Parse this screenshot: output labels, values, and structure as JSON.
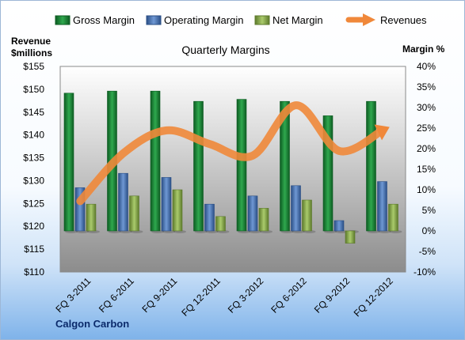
{
  "chart_data": {
    "type": "bar",
    "title": "Quarterly Margins",
    "left_axis_title_line1": "Revenue",
    "left_axis_title_line2": "$millions",
    "right_axis_title": "Margin %",
    "company": "Calgon Carbon",
    "categories": [
      "FQ 3-2011",
      "FQ 6-2011",
      "FQ 9-2011",
      "FQ 12-2011",
      "FQ 3-2012",
      "FQ 6-2012",
      "FQ 9-2012",
      "FQ 12-2012"
    ],
    "left_ylim": [
      110,
      155
    ],
    "left_ticks": [
      "$110",
      "$115",
      "$120",
      "$125",
      "$130",
      "$135",
      "$140",
      "$145",
      "$150",
      "$155"
    ],
    "right_ylim": [
      -10,
      40
    ],
    "right_ticks": [
      "-10%",
      "-5%",
      "0%",
      "5%",
      "10%",
      "15%",
      "20%",
      "25%",
      "30%",
      "35%",
      "40%"
    ],
    "series": [
      {
        "name": "Gross Margin",
        "axis": "right",
        "kind": "bar",
        "color": "#1e8a3a",
        "values": [
          33.5,
          34.0,
          34.0,
          31.5,
          32.0,
          31.5,
          28.0,
          31.5
        ]
      },
      {
        "name": "Operating Margin",
        "axis": "right",
        "kind": "bar",
        "color": "#4f7fc4",
        "values": [
          10.5,
          14.0,
          13.0,
          6.5,
          8.5,
          11.0,
          2.5,
          12.0
        ]
      },
      {
        "name": "Net Margin",
        "axis": "right",
        "kind": "bar",
        "color": "#8fb14f",
        "values": [
          6.5,
          8.5,
          10.0,
          3.5,
          5.5,
          7.5,
          -3.0,
          6.5
        ]
      },
      {
        "name": "Revenues",
        "axis": "left",
        "kind": "line",
        "color": "#f0883a",
        "values": [
          125.5,
          136,
          141,
          138,
          135.5,
          146.5,
          136.5,
          141
        ]
      }
    ],
    "grid": false,
    "legend_position": "top"
  }
}
